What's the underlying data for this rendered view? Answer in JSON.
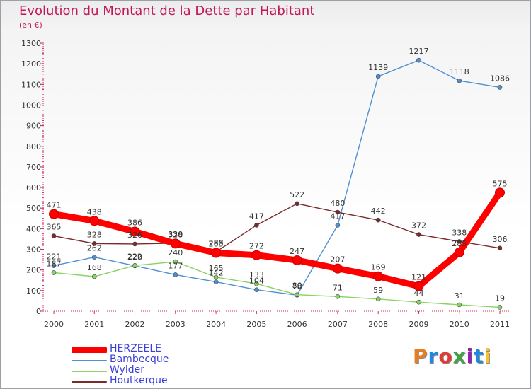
{
  "title": "Evolution du Montant de la Dette par Habitant",
  "subtitle": "(en €)",
  "logo": {
    "text": "Proxiti",
    "colors": [
      "#e67e22",
      "#1e88e5",
      "#e53935",
      "#43a047",
      "#8e24aa",
      "#1e88e5",
      "#fbc02d"
    ]
  },
  "chart_data": {
    "type": "line",
    "title": "Evolution du Montant de la Dette par Habitant",
    "subtitle": "(en €)",
    "xlabel": "",
    "ylabel": "",
    "x": [
      "2000",
      "2001",
      "2002",
      "2003",
      "2004",
      "2005",
      "2006",
      "2007",
      "2008",
      "2009",
      "2010",
      "2011"
    ],
    "ylim": [
      0,
      1300
    ],
    "yticks": [
      0,
      100,
      200,
      300,
      400,
      500,
      600,
      700,
      800,
      900,
      1000,
      1100,
      1200,
      1300
    ],
    "grid": false,
    "legend_position": "bottom-left",
    "series": [
      {
        "name": "HERZEELE",
        "color": "#ff0000",
        "values": [
          471,
          438,
          386,
          328,
          283,
          272,
          247,
          207,
          169,
          121,
          285,
          575
        ],
        "labels": [
          "471",
          "438",
          "386",
          "328",
          "283",
          "272",
          "247",
          "207",
          "169",
          "121",
          "285",
          "575"
        ]
      },
      {
        "name": "Bambecque",
        "color": "#4f90d3",
        "values": [
          221,
          262,
          220,
          177,
          142,
          104,
          78,
          417,
          1139,
          1217,
          1118,
          1086
        ],
        "labels": [
          "221",
          "262",
          "220",
          "177",
          "142",
          "104",
          "78",
          "417",
          "1139",
          "1217",
          "1118",
          "1086"
        ]
      },
      {
        "name": "Wylder",
        "color": "#8ad263",
        "values": [
          187,
          168,
          222,
          240,
          165,
          133,
          80,
          71,
          59,
          44,
          31,
          19
        ],
        "labels": [
          "187",
          "168",
          "222",
          "240",
          "165",
          "133",
          "80",
          "71",
          "59",
          "44",
          "31",
          "19"
        ]
      },
      {
        "name": "Houtkerque",
        "color": "#7b2a2a",
        "values": [
          365,
          328,
          326,
          330,
          288,
          417,
          522,
          480,
          442,
          372,
          338,
          306
        ],
        "labels": [
          "365",
          "328",
          "326",
          "330",
          "288",
          "417",
          "522",
          "480",
          "442",
          "372",
          "338",
          "306"
        ]
      }
    ]
  }
}
